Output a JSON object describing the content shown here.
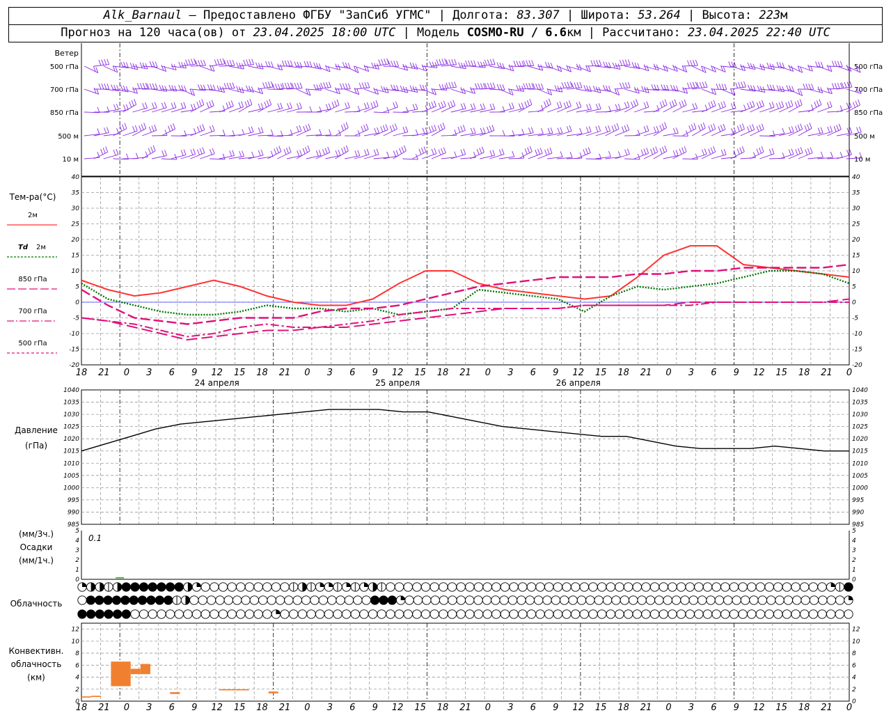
{
  "header": {
    "station": "Alk_Barnaul",
    "provider": " – Предоставлено ФГБУ \"ЗапСиб УГМС\" | Долгота: ",
    "lon": "83.307",
    "lat_label": " | Широта: ",
    "lat": "53.264",
    "alt_label": " | Высота: ",
    "alt": "223",
    "alt_unit": "м",
    "forecast_label": "Прогноз на 120 часа(ов) от ",
    "forecast_time": "23.04.2025 18:00 UTC",
    "model_label": " | Модель ",
    "model": "COSMO-RU / 6.6",
    "model_unit": "км",
    "calc_label": " | Рассчитано: ",
    "calc_time": "23.04.2025 22:40 UTC"
  },
  "labels": {
    "wind": "Ветер",
    "wind_levels": [
      "500 гПа",
      "700 гПа",
      "850 гПа",
      "500 м",
      "10 м"
    ],
    "temp_title": "Тем-ра(°С)",
    "legend": [
      {
        "prefix": "",
        "text": "2м",
        "color": "#ff3333",
        "dash": ""
      },
      {
        "prefix": "Td",
        "text": "2м",
        "color": "#007700",
        "dash": "3,2"
      },
      {
        "prefix": "",
        "text": "850 гПа",
        "color": "#e0107a",
        "dash": "12,4"
      },
      {
        "prefix": "",
        "text": "700 гПа",
        "color": "#e0107a",
        "dash": "10,3,2,3"
      },
      {
        "prefix": "",
        "text": "500 гПа",
        "color": "#e0107a",
        "dash": "4,3"
      }
    ],
    "pressure_title": "Давление",
    "pressure_unit": "(гПа)",
    "precip_unit3": "(мм/3ч.)",
    "precip_title": "Осадки",
    "precip_unit1": "(мм/1ч.)",
    "precip_max": "0.1",
    "cloud_title": "Облачность",
    "conv_title1": "Конвективн.",
    "conv_title2": "облачность",
    "conv_unit": "(км)",
    "dates": [
      "24 апреля",
      "25 апреля",
      "26 апреля"
    ]
  },
  "chart_data": [
    {
      "type": "line",
      "name": "temperature",
      "x_hours": [
        0,
        3,
        6,
        9,
        12,
        15,
        18,
        21,
        24,
        27,
        30,
        33,
        36,
        39,
        42,
        45,
        48,
        51,
        54,
        57,
        60,
        63,
        66,
        69,
        72,
        75,
        78,
        81,
        84,
        87,
        90,
        93,
        96,
        99,
        102,
        105,
        108,
        111,
        114,
        117,
        120
      ],
      "x_tick_labels": [
        "18",
        "21",
        "0",
        "3",
        "6",
        "9",
        "12",
        "15",
        "18",
        "21",
        "0",
        "3",
        "6",
        "9",
        "12",
        "15",
        "18",
        "21",
        "0",
        "3",
        "6",
        "9",
        "12",
        "15",
        "18",
        "21",
        "0",
        "3",
        "6",
        "9",
        "12",
        "15",
        "18",
        "21",
        "0"
      ],
      "ylim": [
        -20,
        40
      ],
      "y_ticks": [
        -20,
        -15,
        -10,
        -5,
        0,
        5,
        10,
        15,
        20,
        25,
        30,
        35,
        40
      ],
      "series": [
        {
          "name": "2м",
          "color": "#ff3333",
          "style": "solid",
          "values": [
            7,
            4,
            2,
            3,
            5,
            7,
            5,
            2,
            0,
            -1,
            -1,
            1,
            6,
            10,
            10,
            6,
            4,
            3,
            2,
            1,
            2,
            8,
            15,
            18,
            18,
            12,
            11,
            10,
            9,
            8
          ]
        },
        {
          "name": "Td 2м",
          "color": "#007700",
          "style": "dotted",
          "values": [
            6,
            1,
            -1,
            -3,
            -4,
            -4,
            -3,
            -1,
            -2,
            -2,
            -3,
            -2,
            -4,
            -3,
            -2,
            4,
            3,
            2,
            1,
            -3,
            2,
            5,
            4,
            5,
            6,
            8,
            10,
            10,
            9,
            6
          ]
        },
        {
          "name": "850 гПа",
          "color": "#e0107a",
          "style": "dashed",
          "values": [
            4,
            -1,
            -5,
            -6,
            -7,
            -6,
            -5,
            -5,
            -5,
            -3,
            -2,
            -2,
            -1,
            1,
            3,
            5,
            6,
            7,
            8,
            8,
            8,
            9,
            9,
            10,
            10,
            11,
            11,
            11,
            11,
            12
          ]
        },
        {
          "name": "700 гПа",
          "color": "#e0107a",
          "style": "dashdot",
          "values": [
            -5,
            -6,
            -7,
            -9,
            -11,
            -10,
            -8,
            -7,
            -8,
            -8,
            -7,
            -6,
            -4,
            -3,
            -2,
            -2,
            -2,
            -2,
            -2,
            -1,
            -1,
            -1,
            -1,
            -1,
            0,
            0,
            0,
            0,
            0,
            0
          ]
        },
        {
          "name": "500 гПа",
          "color": "#e0107a",
          "style": "dashed",
          "values": [
            -5,
            -6,
            -8,
            -10,
            -12,
            -11,
            -10,
            -9,
            -9,
            -8,
            -8,
            -7,
            -6,
            -5,
            -4,
            -3,
            -2,
            -2,
            -2,
            -1,
            -1,
            -1,
            -1,
            0,
            0,
            0,
            0,
            0,
            0,
            1
          ]
        }
      ]
    },
    {
      "type": "line",
      "name": "pressure",
      "ylim": [
        985,
        1040
      ],
      "y_ticks": [
        985,
        990,
        995,
        1000,
        1005,
        1010,
        1015,
        1020,
        1025,
        1030,
        1035,
        1040
      ],
      "series": [
        {
          "name": "pressure",
          "color": "#000000",
          "values": [
            1015,
            1018,
            1021,
            1024,
            1026,
            1027,
            1028,
            1029,
            1030,
            1031,
            1032,
            1032,
            1032,
            1031,
            1031,
            1029,
            1027,
            1025,
            1024,
            1023,
            1022,
            1021,
            1021,
            1019,
            1017,
            1016,
            1016,
            1016,
            1017,
            1016,
            1015,
            1015
          ]
        }
      ]
    },
    {
      "type": "bar",
      "name": "precipitation",
      "ylim": [
        0,
        5
      ],
      "y_ticks": [
        0,
        1,
        2,
        3,
        4,
        5
      ],
      "values": [
        0,
        0,
        0.1,
        0,
        0,
        0,
        0,
        0,
        0,
        0,
        0,
        0,
        0,
        0,
        0,
        0,
        0,
        0,
        0,
        0,
        0,
        0,
        0,
        0,
        0,
        0,
        0,
        0,
        0,
        0,
        0,
        0,
        0,
        0,
        0,
        0,
        0,
        0,
        0,
        0,
        0
      ]
    },
    {
      "type": "bar",
      "name": "convective_cloud",
      "ylim": [
        0,
        13
      ],
      "y_ticks": [
        0,
        2,
        4,
        6,
        8,
        10,
        12
      ],
      "bars": [
        {
          "h0": 0,
          "h1": 1,
          "bottom": 0.6,
          "top": 0.8
        },
        {
          "h0": 1,
          "h1": 2,
          "bottom": 0.7,
          "top": 0.9
        },
        {
          "h0": 3,
          "h1": 5,
          "bottom": 2.5,
          "top": 6.6
        },
        {
          "h0": 5,
          "h1": 6,
          "bottom": 4.5,
          "top": 5.4
        },
        {
          "h0": 6,
          "h1": 7,
          "bottom": 4.5,
          "top": 6.2
        },
        {
          "h0": 9,
          "h1": 10,
          "bottom": 1.2,
          "top": 1.5
        },
        {
          "h0": 14,
          "h1": 17,
          "bottom": 1.8,
          "top": 2.0
        },
        {
          "h0": 19,
          "h1": 20,
          "bottom": 1.3,
          "top": 1.6
        }
      ]
    }
  ],
  "clouds": {
    "rows": [
      "dhhvhfffffffhdeeeeeeeeeevhvddvdvdhveeeeeeeeeeeeeeeeeeeeeeeeeeeeeeeeeeeeeeeeeeeeeeeeeedvf",
      "effffffffffvheeeeeeeeeeeeeeeeeeeeefffdeeeeeeeeeeeeeeeeeeeeeeeeeeeeeeeeeeeeeeeeeeeeeeeeeeed",
      "ffffffeeeeeeeeeeeeeeeedeeeeeeeeeeeeeeeeeeeeeeeeeeeeeeeeeeeeeeeeeeeeeeeeeeeeeeeeeeeeeeeee"
    ]
  },
  "colors": {
    "wind": "#8a2be2",
    "grid": "#999999",
    "precip": "#22aa22",
    "conv": "#f08030"
  }
}
